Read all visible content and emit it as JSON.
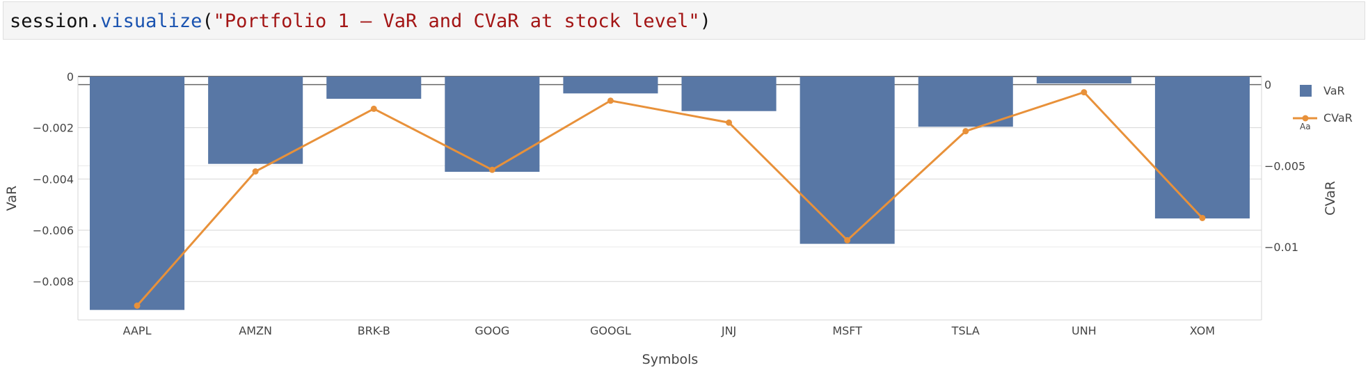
{
  "code": {
    "object": "session",
    "dot": ".",
    "method": "visualize",
    "open_paren": "(",
    "argument": "\"Portfolio 1 – VaR and CVaR at stock level\"",
    "close_paren": ")"
  },
  "chart_data": {
    "type": "bar",
    "title": "",
    "xlabel": "Symbols",
    "ylabel": "VaR",
    "y2label": "CVaR",
    "categories": [
      "AAPL",
      "AMZN",
      "BRK-B",
      "GOOG",
      "GOOGL",
      "JNJ",
      "MSFT",
      "TSLA",
      "UNH",
      "XOM"
    ],
    "ylim": [
      -0.0095,
      0.0
    ],
    "y2lim": [
      -0.0145,
      0.0005
    ],
    "yticks": [
      0,
      -0.002,
      -0.004,
      -0.006,
      -0.008
    ],
    "ytick_labels": [
      "0",
      "−0.002",
      "−0.004",
      "−0.006",
      "−0.008"
    ],
    "y2ticks": [
      0,
      -0.005,
      -0.01
    ],
    "y2tick_labels": [
      "0",
      "−0.005",
      "−0.01"
    ],
    "grid": true,
    "legend_position": "top-right",
    "series": [
      {
        "name": "VaR",
        "type": "bar",
        "axis": "left",
        "color": "#5877a5",
        "values": [
          -0.00911,
          -0.00341,
          -0.00087,
          -0.00372,
          -0.00066,
          -0.00135,
          -0.00653,
          -0.00196,
          -0.00027,
          -0.00554
        ]
      },
      {
        "name": "CVaR",
        "type": "line",
        "axis": "right",
        "color": "#e8913a",
        "values": [
          -0.01362,
          -0.00535,
          -0.00149,
          -0.00525,
          -0.00099,
          -0.00234,
          -0.00959,
          -0.00287,
          -0.00047,
          -0.00822
        ]
      }
    ],
    "legend_extra_label": "Aa"
  }
}
